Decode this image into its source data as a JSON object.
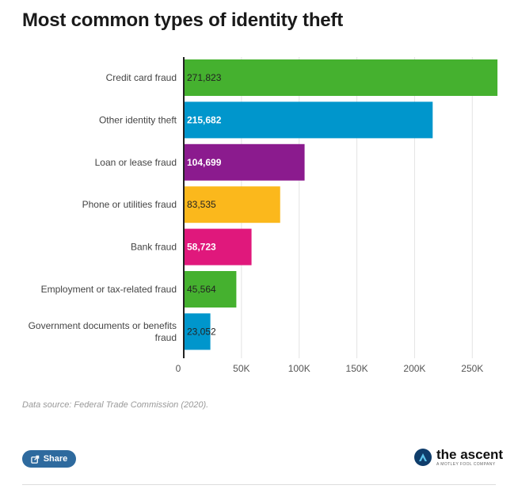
{
  "title": "Most common types of identity theft",
  "source": "Data source: Federal Trade Commission (2020).",
  "share_label": "Share",
  "brand": {
    "name": "the ascent",
    "tagline": "A MOTLEY FOOL COMPANY",
    "icon": "ascent-logo-icon"
  },
  "chart_data": {
    "type": "bar",
    "orientation": "horizontal",
    "title": "Most common types of identity theft",
    "categories": [
      "Credit card fraud",
      "Other identity theft",
      "Loan or lease fraud",
      "Phone or utilities fraud",
      "Bank fraud",
      "Employment or tax-related fraud",
      "Government documents or benefits fraud"
    ],
    "values": [
      271823,
      215682,
      104699,
      83535,
      58723,
      45564,
      23052
    ],
    "value_labels": [
      "271,823",
      "215,682",
      "104,699",
      "83,535",
      "58,723",
      "45,564",
      "23,052"
    ],
    "colors": [
      "#45b12f",
      "#0096cc",
      "#8b1b8e",
      "#fbb81c",
      "#e0187c",
      "#45b12f",
      "#0096cc"
    ],
    "value_label_colors": [
      "#222222",
      "#ffffff",
      "#ffffff",
      "#222222",
      "#ffffff",
      "#222222",
      "#222222"
    ],
    "xlim": [
      0,
      280000
    ],
    "xticks": [
      0,
      50000,
      100000,
      150000,
      200000,
      250000
    ],
    "xtick_labels": [
      "0",
      "50K",
      "100K",
      "150K",
      "200K",
      "250K"
    ],
    "grid": true,
    "legend": false
  }
}
